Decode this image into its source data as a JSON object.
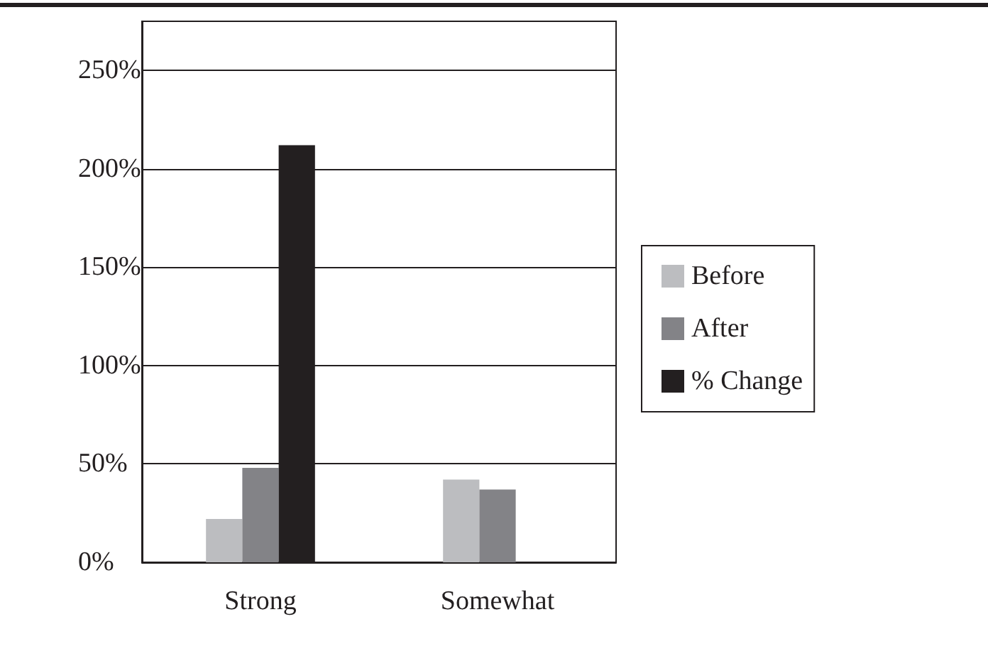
{
  "chart_data": {
    "type": "bar",
    "categories": [
      "Strong",
      "Somewhat"
    ],
    "series": [
      {
        "name": "Before",
        "color": "#bcbdc0",
        "values": [
          22,
          42
        ]
      },
      {
        "name": "After",
        "color": "#838387",
        "values": [
          48,
          37
        ]
      },
      {
        "name": "% Change",
        "color": "#231f20",
        "values": [
          212,
          null
        ]
      }
    ],
    "ylim": [
      0,
      275
    ],
    "yticks": [
      {
        "value": 0,
        "label": "0%"
      },
      {
        "value": 50,
        "label": "50%"
      },
      {
        "value": 100,
        "label": "100%"
      },
      {
        "value": 150,
        "label": "150%"
      },
      {
        "value": 200,
        "label": "200%"
      },
      {
        "value": 250,
        "label": "250%"
      }
    ],
    "grid": "y",
    "legend": "right"
  }
}
